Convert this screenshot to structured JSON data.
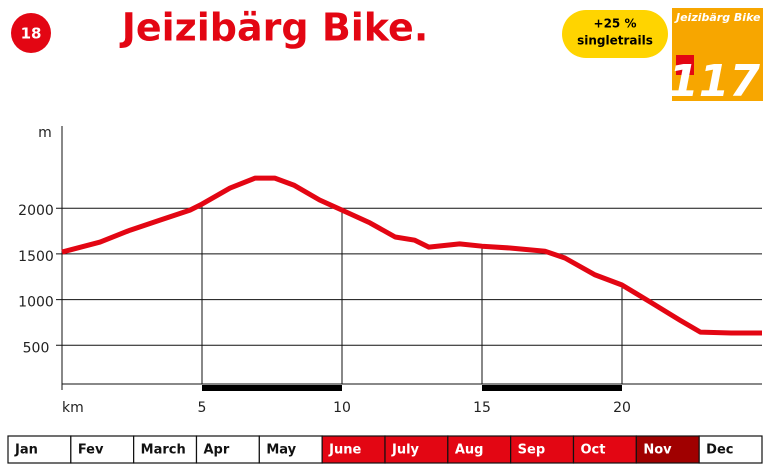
{
  "header": {
    "badge": "18",
    "title": "Jeizibärg Bike.",
    "bubble_line1": "+25 %",
    "bubble_line2": "singletrails",
    "cover_title": "Jeizibärg Bike",
    "cover_number": "117"
  },
  "chart_data": {
    "type": "line",
    "y_label": "m",
    "x": [
      0,
      1.36,
      2.43,
      3.5,
      4.57,
      5,
      6,
      6.9,
      7.6,
      8.3,
      9.2,
      10,
      11,
      11.9,
      12.6,
      13.1,
      14.2,
      15,
      16,
      17.25,
      17.96,
      19.04,
      20,
      21,
      22.07,
      22.8,
      23.9,
      25
    ],
    "values": [
      1520,
      1630,
      1760,
      1870,
      1980,
      2045,
      2220,
      2330,
      2330,
      2250,
      2090,
      1980,
      1840,
      1685,
      1650,
      1575,
      1610,
      1585,
      1565,
      1530,
      1455,
      1270,
      1160,
      975,
      775,
      645,
      635,
      635
    ],
    "color": "#e30613",
    "xlim": [
      0,
      25
    ],
    "xticks": [
      {
        "value": 0,
        "label": "km"
      },
      5,
      10,
      15,
      20
    ],
    "ylim": [
      0,
      2900
    ],
    "yticks": [
      500,
      1000,
      1500,
      2000
    ],
    "grid": true
  },
  "months": [
    {
      "name": "Jan",
      "color": "#ffffff"
    },
    {
      "name": "Fev",
      "color": "#ffffff"
    },
    {
      "name": "March",
      "color": "#ffffff"
    },
    {
      "name": "Apr",
      "color": "#ffffff"
    },
    {
      "name": "May",
      "color": "#ffffff"
    },
    {
      "name": "June",
      "color": "#e30613"
    },
    {
      "name": "July",
      "color": "#e30613"
    },
    {
      "name": "Aug",
      "color": "#e30613"
    },
    {
      "name": "Sep",
      "color": "#e30613"
    },
    {
      "name": "Oct",
      "color": "#e30613"
    },
    {
      "name": "Nov",
      "color": "#a00000"
    },
    {
      "name": "Dec",
      "color": "#ffffff"
    }
  ]
}
